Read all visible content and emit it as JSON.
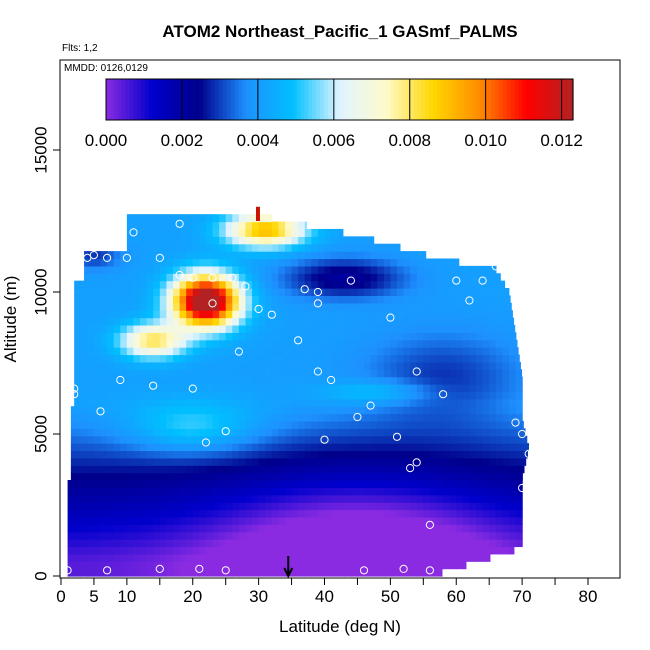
{
  "chart_data": {
    "type": "heatmap",
    "title": "ATOM2 Northeast_Pacific_1 GASmf_PALMS",
    "flights_label": "Flts: 1,2",
    "mmdd_label": "MMDD: 0126,0129",
    "xlabel": "Latitude (deg N)",
    "ylabel": "Altitude (m)",
    "xlim": [
      0,
      85
    ],
    "ylim": [
      0,
      17500
    ],
    "x_ticks": [
      0,
      5,
      10,
      20,
      30,
      40,
      50,
      60,
      70,
      80
    ],
    "x_tick_labels": [
      "0",
      "5",
      "10",
      "20",
      "30",
      "40",
      "50",
      "60",
      "70",
      "80"
    ],
    "y_ticks": [
      0,
      5000,
      10000,
      15000
    ],
    "y_tick_labels": [
      "0",
      "5000",
      "10000",
      "15000"
    ],
    "colorbar": {
      "min": 0,
      "max": 0.0123,
      "ticks": [
        0,
        0.002,
        0.004,
        0.006,
        0.008,
        0.01,
        0.012
      ],
      "tick_labels": [
        "0.000",
        "0.002",
        "0.004",
        "0.006",
        "0.008",
        "0.010",
        "0.012"
      ],
      "colors": [
        "#8a2be2",
        "#0000cd",
        "#00008b",
        "#1e90ff",
        "#00bfff",
        "#e0f4ff",
        "#fffacd",
        "#ffd700",
        "#ff8c00",
        "#ff0000",
        "#b22222"
      ]
    },
    "arrow_latitude": 34.5,
    "observations": [
      {
        "lat": 11,
        "alt": 12100
      },
      {
        "lat": 18,
        "alt": 12400
      },
      {
        "lat": 4,
        "alt": 11200
      },
      {
        "lat": 5,
        "alt": 11300
      },
      {
        "lat": 7,
        "alt": 11200
      },
      {
        "lat": 10,
        "alt": 11200
      },
      {
        "lat": 15,
        "alt": 11200
      },
      {
        "lat": 18,
        "alt": 10600
      },
      {
        "lat": 20,
        "alt": 10500
      },
      {
        "lat": 23,
        "alt": 10500
      },
      {
        "lat": 26,
        "alt": 10500
      },
      {
        "lat": 28,
        "alt": 10200
      },
      {
        "lat": 37,
        "alt": 10100
      },
      {
        "lat": 39,
        "alt": 10000
      },
      {
        "lat": 44,
        "alt": 10400
      },
      {
        "lat": 60,
        "alt": 10400
      },
      {
        "lat": 64,
        "alt": 10400
      },
      {
        "lat": 66,
        "alt": 10900
      },
      {
        "lat": 62,
        "alt": 9700
      },
      {
        "lat": 23,
        "alt": 9600
      },
      {
        "lat": 30,
        "alt": 9400
      },
      {
        "lat": 32,
        "alt": 9200
      },
      {
        "lat": 39,
        "alt": 9600
      },
      {
        "lat": 50,
        "alt": 9100
      },
      {
        "lat": 36,
        "alt": 8300
      },
      {
        "lat": 27,
        "alt": 7900
      },
      {
        "lat": 9,
        "alt": 6900
      },
      {
        "lat": 14,
        "alt": 6700
      },
      {
        "lat": 20,
        "alt": 6600
      },
      {
        "lat": 2,
        "alt": 6600
      },
      {
        "lat": 2,
        "alt": 6400
      },
      {
        "lat": 39,
        "alt": 7200
      },
      {
        "lat": 41,
        "alt": 6900
      },
      {
        "lat": 54,
        "alt": 7200
      },
      {
        "lat": 58,
        "alt": 6400
      },
      {
        "lat": 6,
        "alt": 5800
      },
      {
        "lat": 47,
        "alt": 6000
      },
      {
        "lat": 45,
        "alt": 5600
      },
      {
        "lat": 25,
        "alt": 5100
      },
      {
        "lat": 22,
        "alt": 4700
      },
      {
        "lat": 40,
        "alt": 4800
      },
      {
        "lat": 51,
        "alt": 4900
      },
      {
        "lat": 69,
        "alt": 5400
      },
      {
        "lat": 70,
        "alt": 5000
      },
      {
        "lat": 71,
        "alt": 4300
      },
      {
        "lat": 54,
        "alt": 4000
      },
      {
        "lat": 53,
        "alt": 3800
      },
      {
        "lat": 70,
        "alt": 3100
      },
      {
        "lat": 56,
        "alt": 1800
      },
      {
        "lat": 70,
        "alt": 700
      },
      {
        "lat": 1,
        "alt": 200
      },
      {
        "lat": 7,
        "alt": 200
      },
      {
        "lat": 15,
        "alt": 250
      },
      {
        "lat": 21,
        "alt": 250
      },
      {
        "lat": 25,
        "alt": 200
      },
      {
        "lat": 46,
        "alt": 200
      },
      {
        "lat": 52,
        "alt": 250
      },
      {
        "lat": 56,
        "alt": 200
      }
    ]
  }
}
